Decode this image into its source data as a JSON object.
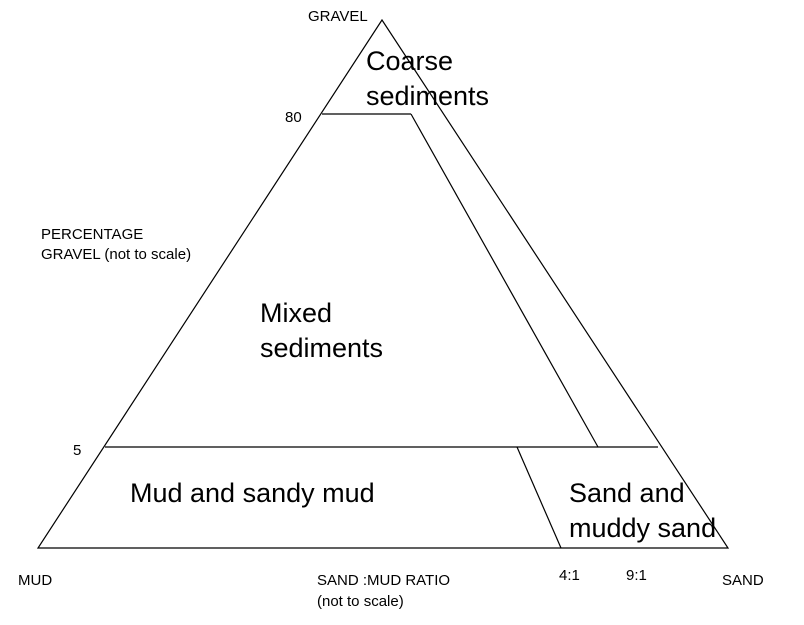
{
  "vertices": {
    "top": "GRAVEL",
    "bottom_left": "MUD",
    "bottom_right": "SAND"
  },
  "left_axis": {
    "title_line1": "PERCENTAGE",
    "title_line2": "GRAVEL (not to scale)",
    "tick_80": "80",
    "tick_5": "5"
  },
  "bottom_axis": {
    "title_line1": "SAND :MUD RATIO",
    "title_line2": "(not to scale)",
    "tick_4_1": "4:1",
    "tick_9_1": "9:1"
  },
  "regions": {
    "coarse_line1": "Coarse",
    "coarse_line2": "sediments",
    "mixed_line1": "Mixed",
    "mixed_line2": "sediments",
    "mud": "Mud and sandy mud",
    "sand_line1": "Sand and",
    "sand_line2": "muddy sand"
  }
}
